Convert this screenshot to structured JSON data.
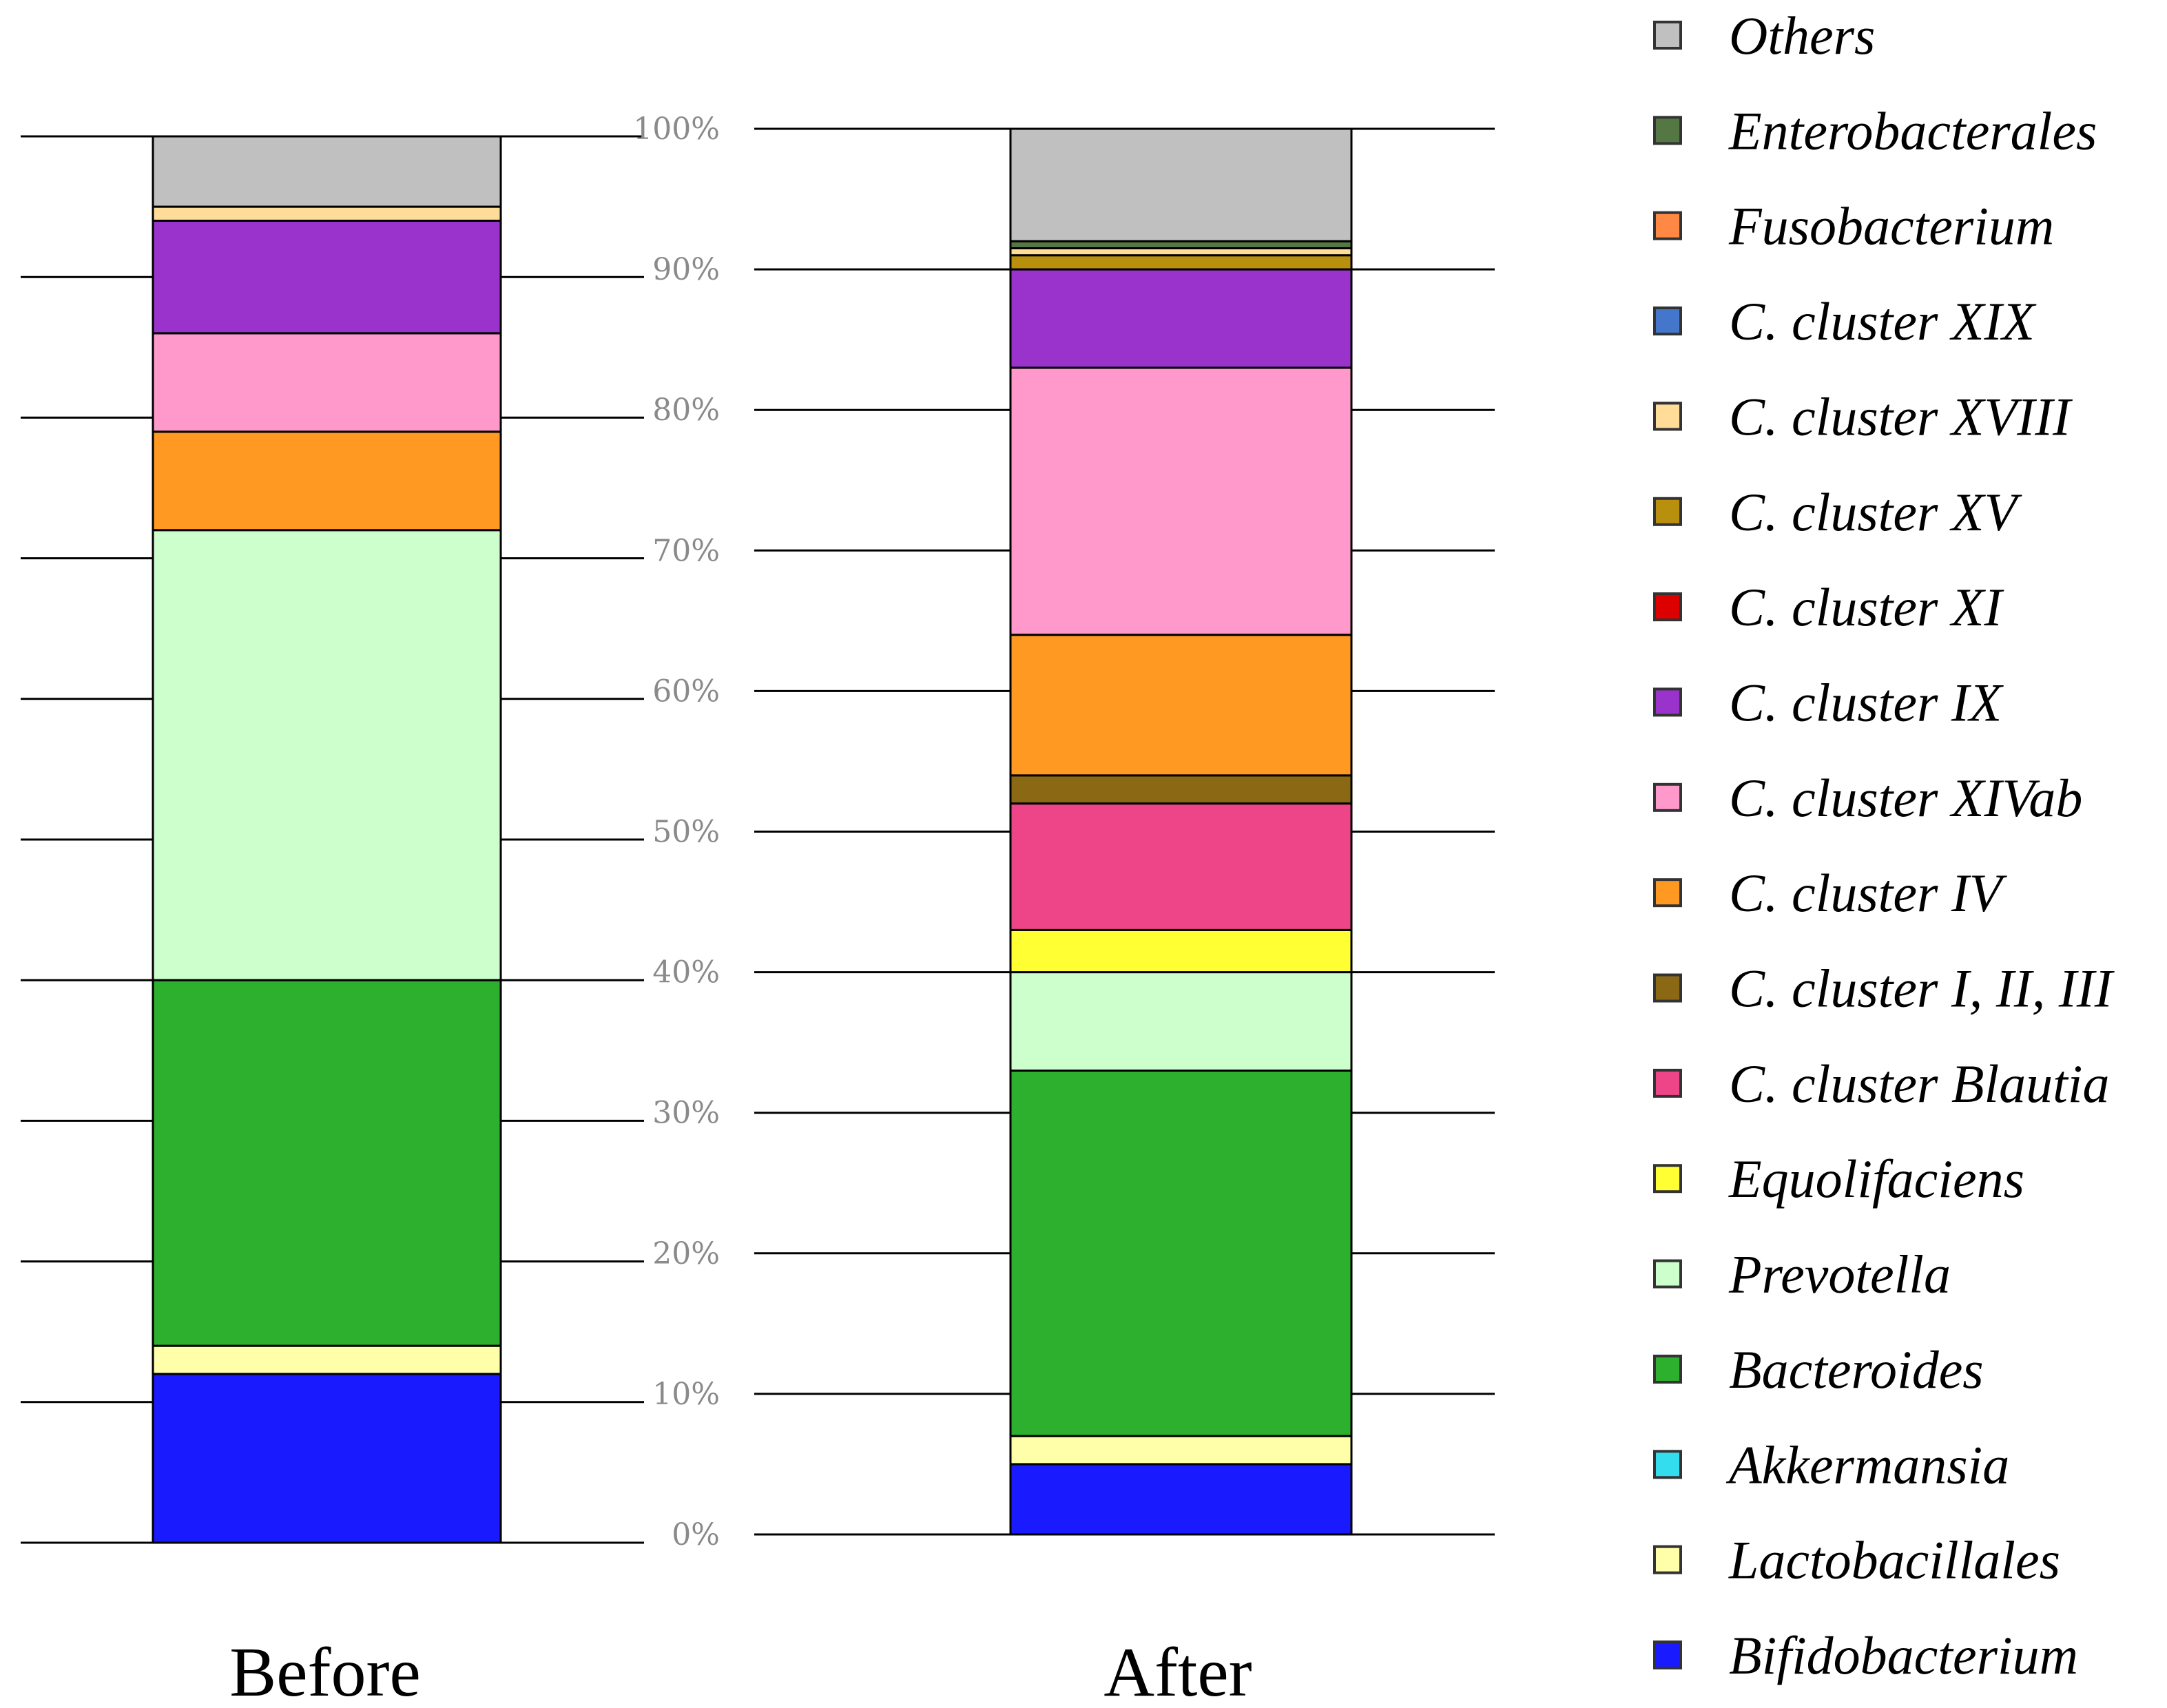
{
  "chart_data": {
    "type": "bar",
    "stacked": true,
    "normalized": true,
    "categories": [
      "Before",
      "After"
    ],
    "ylim": [
      0,
      100
    ],
    "yticks": [
      "0%",
      "10%",
      "20%",
      "30%",
      "40%",
      "50%",
      "60%",
      "70%",
      "80%",
      "90%",
      "100%"
    ],
    "series": [
      {
        "name": "Bifidobacterium",
        "color": "#1a1aff",
        "values": [
          12,
          5
        ]
      },
      {
        "name": "Lactobacillales",
        "color": "#ffffaa",
        "values": [
          2,
          2
        ]
      },
      {
        "name": "Akkermansia",
        "color": "#33ddee",
        "values": [
          0,
          0
        ]
      },
      {
        "name": "Bacteroides",
        "color": "#2db02d",
        "values": [
          26,
          26
        ]
      },
      {
        "name": "Prevotella",
        "color": "#ccffcc",
        "values": [
          32,
          7
        ]
      },
      {
        "name": "Equolifaciens",
        "color": "#ffff33",
        "values": [
          0,
          3
        ]
      },
      {
        "name": "C. cluster  Blautia",
        "color": "#ee4488",
        "values": [
          0,
          9
        ]
      },
      {
        "name": "C. cluster I, II, III",
        "color": "#8b6914",
        "values": [
          0,
          2
        ]
      },
      {
        "name": "C. cluster IV",
        "color": "#ff9922",
        "values": [
          7,
          10
        ]
      },
      {
        "name": "C. cluster XIVab",
        "color": "#ff99cc",
        "values": [
          7,
          19
        ]
      },
      {
        "name": "C. cluster IX",
        "color": "#9933cc",
        "values": [
          8,
          7
        ]
      },
      {
        "name": "C. cluster XI",
        "color": "#dd0000",
        "values": [
          0,
          0
        ]
      },
      {
        "name": "C. cluster XV",
        "color": "#b8900e",
        "values": [
          0,
          1
        ]
      },
      {
        "name": "C. cluster XVIII",
        "color": "#ffdd99",
        "values": [
          1,
          0.5
        ]
      },
      {
        "name": "C. cluster XIX",
        "color": "#4477cc",
        "values": [
          0,
          0
        ]
      },
      {
        "name": "Fusobacterium",
        "color": "#ff8844",
        "values": [
          0,
          0
        ]
      },
      {
        "name": "Enterobacterales",
        "color": "#557744",
        "values": [
          0,
          0.5
        ]
      },
      {
        "name": "Others",
        "color": "#c0c0c0",
        "values": [
          5,
          8
        ]
      }
    ]
  }
}
